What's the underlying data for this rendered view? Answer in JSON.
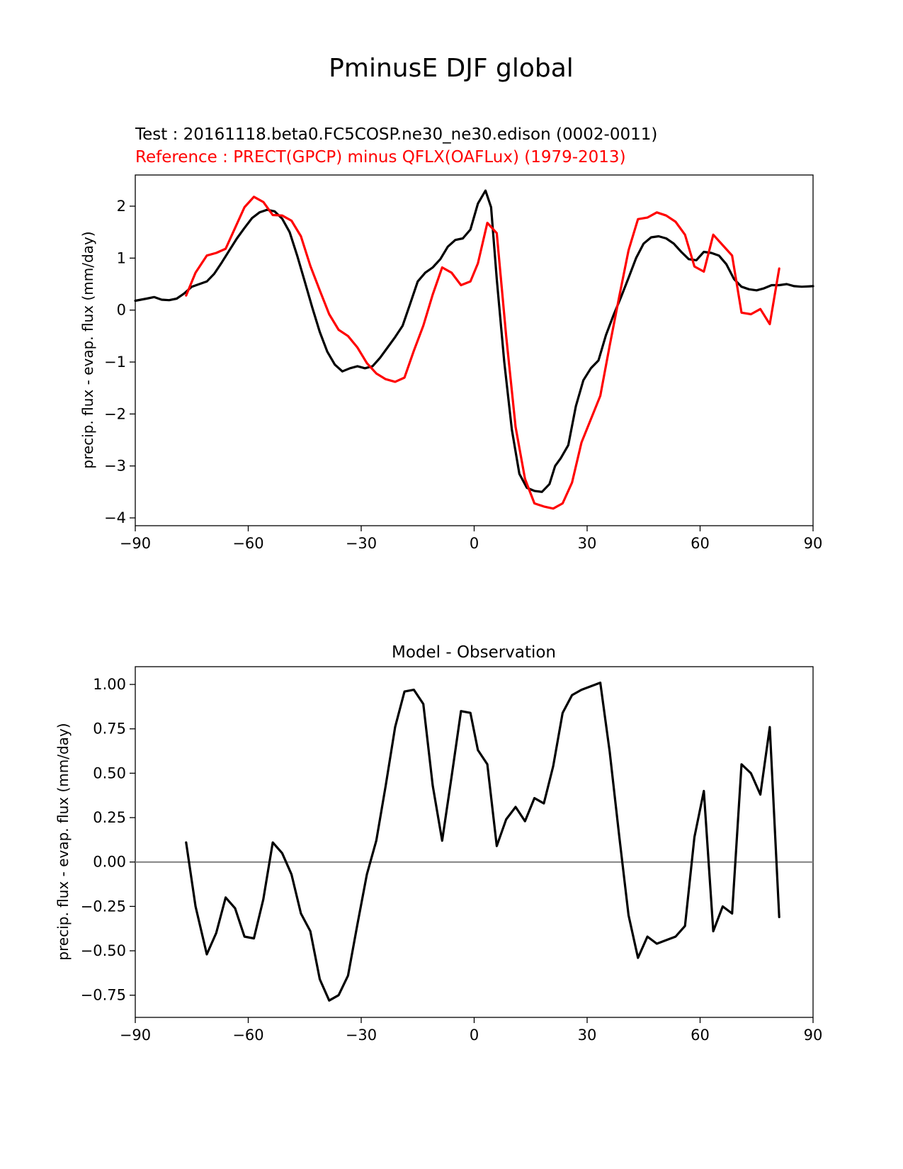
{
  "figure": {
    "title": "PminusE DJF global"
  },
  "chart_data": [
    {
      "type": "line",
      "test_label": "Test : 20161118.beta0.FC5COSP.ne30_ne30.edison (0002-0011)",
      "reference_label": "Reference : PRECT(GPCP) minus QFLX(OAFLux) (1979-2013)",
      "xlabel": "",
      "ylabel": "precip. flux - evap. flux (mm/day)",
      "xlim": [
        -90,
        90
      ],
      "ylim": [
        -4.15,
        2.6
      ],
      "xticks": [
        -90,
        -60,
        -30,
        0,
        30,
        60,
        90
      ],
      "xtick_labels": [
        "−90",
        "−60",
        "−30",
        "0",
        "30",
        "60",
        "90"
      ],
      "yticks": [
        -4,
        -3,
        -2,
        -1,
        0,
        1,
        2
      ],
      "ytick_labels": [
        "−4",
        "−3",
        "−2",
        "−1",
        "0",
        "1",
        "2"
      ],
      "series": [
        {
          "color": "#000000",
          "x": [
            -90,
            -87,
            -85,
            -83,
            -81,
            -79,
            -77,
            -75,
            -73,
            -71,
            -69,
            -67,
            -65,
            -63,
            -61,
            -59,
            -57,
            -55,
            -53,
            -51,
            -49,
            -47,
            -45,
            -43,
            -41,
            -39,
            -37,
            -35,
            -33,
            -31,
            -29,
            -27,
            -25,
            -23,
            -21,
            -19,
            -17,
            -15,
            -13,
            -11,
            -9,
            -7,
            -5,
            -3,
            -1,
            1,
            3,
            4.5,
            6,
            8,
            10,
            12,
            14,
            16,
            18,
            20,
            21.5,
            23,
            25,
            27,
            29,
            31,
            33,
            35,
            37,
            39,
            41,
            43,
            45,
            47,
            49,
            51,
            53,
            55,
            57,
            59,
            61,
            63,
            65,
            67,
            69,
            71,
            73,
            75,
            77,
            79,
            81,
            83,
            85,
            87,
            90
          ],
          "y": [
            0.18,
            0.22,
            0.25,
            0.2,
            0.19,
            0.22,
            0.32,
            0.45,
            0.5,
            0.55,
            0.7,
            0.92,
            1.15,
            1.38,
            1.58,
            1.77,
            1.88,
            1.93,
            1.9,
            1.76,
            1.5,
            1.05,
            0.55,
            0.05,
            -0.42,
            -0.8,
            -1.05,
            -1.18,
            -1.12,
            -1.08,
            -1.12,
            -1.08,
            -0.92,
            -0.72,
            -0.52,
            -0.3,
            0.12,
            0.55,
            0.72,
            0.82,
            0.98,
            1.22,
            1.35,
            1.38,
            1.55,
            2.05,
            2.3,
            1.98,
            0.6,
            -1.0,
            -2.3,
            -3.15,
            -3.42,
            -3.48,
            -3.5,
            -3.35,
            -3.0,
            -2.85,
            -2.6,
            -1.85,
            -1.35,
            -1.12,
            -0.97,
            -0.48,
            -0.1,
            0.25,
            0.62,
            1.0,
            1.28,
            1.4,
            1.42,
            1.38,
            1.28,
            1.12,
            0.98,
            0.96,
            1.12,
            1.1,
            1.05,
            0.88,
            0.6,
            0.45,
            0.4,
            0.38,
            0.42,
            0.48,
            0.48,
            0.5,
            0.46,
            0.45,
            0.46
          ]
        },
        {
          "color": "#ff0000",
          "x": [
            -76.5,
            -74,
            -71,
            -68.5,
            -66,
            -63.5,
            -61,
            -58.5,
            -56,
            -53.5,
            -51,
            -48.5,
            -46,
            -43.5,
            -41,
            -38.5,
            -36,
            -33.5,
            -31,
            -28.5,
            -26,
            -23.5,
            -21,
            -18.5,
            -16,
            -13.5,
            -11,
            -8.5,
            -6,
            -3.5,
            -1,
            1,
            3.5,
            6,
            8.5,
            11,
            13.5,
            16,
            18.5,
            21,
            23.5,
            26,
            28.5,
            31,
            33.5,
            36,
            38.5,
            41,
            43.5,
            46,
            48.5,
            51,
            53.5,
            56,
            58.5,
            61,
            63.5,
            66,
            68.5,
            71,
            73.5,
            76,
            78.5,
            81
          ],
          "y": [
            0.28,
            0.72,
            1.05,
            1.1,
            1.18,
            1.58,
            1.98,
            2.18,
            2.08,
            1.83,
            1.82,
            1.72,
            1.42,
            0.85,
            0.38,
            -0.08,
            -0.38,
            -0.5,
            -0.72,
            -1.02,
            -1.22,
            -1.33,
            -1.38,
            -1.3,
            -0.78,
            -0.3,
            0.3,
            0.82,
            0.72,
            0.48,
            0.55,
            0.9,
            1.68,
            1.48,
            -0.5,
            -2.25,
            -3.25,
            -3.72,
            -3.78,
            -3.82,
            -3.72,
            -3.32,
            -2.55,
            -2.1,
            -1.65,
            -0.68,
            0.25,
            1.15,
            1.75,
            1.78,
            1.88,
            1.82,
            1.7,
            1.45,
            0.84,
            0.74,
            1.45,
            1.25,
            1.05,
            -0.05,
            -0.08,
            0.02,
            -0.27,
            0.8
          ]
        }
      ]
    },
    {
      "type": "line",
      "title": "Model - Observation",
      "xlabel": "",
      "ylabel": "precip. flux - evap. flux (mm/day)",
      "xlim": [
        -90,
        90
      ],
      "ylim": [
        -0.875,
        1.1
      ],
      "xticks": [
        -90,
        -60,
        -30,
        0,
        30,
        60,
        90
      ],
      "xtick_labels": [
        "−90",
        "−60",
        "−30",
        "0",
        "30",
        "60",
        "90"
      ],
      "yticks": [
        -0.75,
        -0.5,
        -0.25,
        0,
        0.25,
        0.5,
        0.75,
        1.0
      ],
      "ytick_labels": [
        "−0.75",
        "−0.50",
        "−0.25",
        "0.00",
        "0.25",
        "0.50",
        "0.75",
        "1.00"
      ],
      "reference_line": {
        "y": 0,
        "color": "#808080"
      },
      "series": [
        {
          "color": "#000000",
          "x": [
            -76.5,
            -74,
            -71,
            -68.5,
            -66,
            -63.5,
            -61,
            -58.5,
            -56,
            -53.5,
            -51,
            -48.5,
            -46,
            -43.5,
            -41,
            -38.5,
            -36,
            -33.5,
            -31,
            -28.5,
            -26,
            -23.5,
            -21,
            -18.5,
            -16,
            -13.5,
            -11,
            -8.5,
            -6,
            -3.5,
            -1,
            1,
            3.5,
            6,
            8.5,
            11,
            13.5,
            16,
            18.5,
            21,
            23.5,
            26,
            28.5,
            31,
            33.5,
            36,
            38.5,
            41,
            43.5,
            46,
            48.5,
            51,
            53.5,
            56,
            58.5,
            61,
            63.5,
            66,
            68.5,
            71,
            73.5,
            76,
            78.5,
            81
          ],
          "y": [
            0.11,
            -0.25,
            -0.52,
            -0.4,
            -0.2,
            -0.26,
            -0.42,
            -0.43,
            -0.21,
            0.11,
            0.05,
            -0.07,
            -0.29,
            -0.39,
            -0.66,
            -0.78,
            -0.75,
            -0.64,
            -0.35,
            -0.07,
            0.12,
            0.43,
            0.76,
            0.96,
            0.97,
            0.89,
            0.43,
            0.12,
            0.48,
            0.85,
            0.84,
            0.63,
            0.55,
            0.09,
            0.24,
            0.31,
            0.23,
            0.36,
            0.33,
            0.54,
            0.84,
            0.94,
            0.97,
            0.99,
            1.01,
            0.62,
            0.15,
            -0.3,
            -0.54,
            -0.42,
            -0.46,
            -0.44,
            -0.42,
            -0.36,
            0.14,
            0.4,
            -0.39,
            -0.25,
            -0.29,
            0.55,
            0.5,
            0.38,
            0.76,
            -0.31
          ]
        }
      ]
    }
  ]
}
